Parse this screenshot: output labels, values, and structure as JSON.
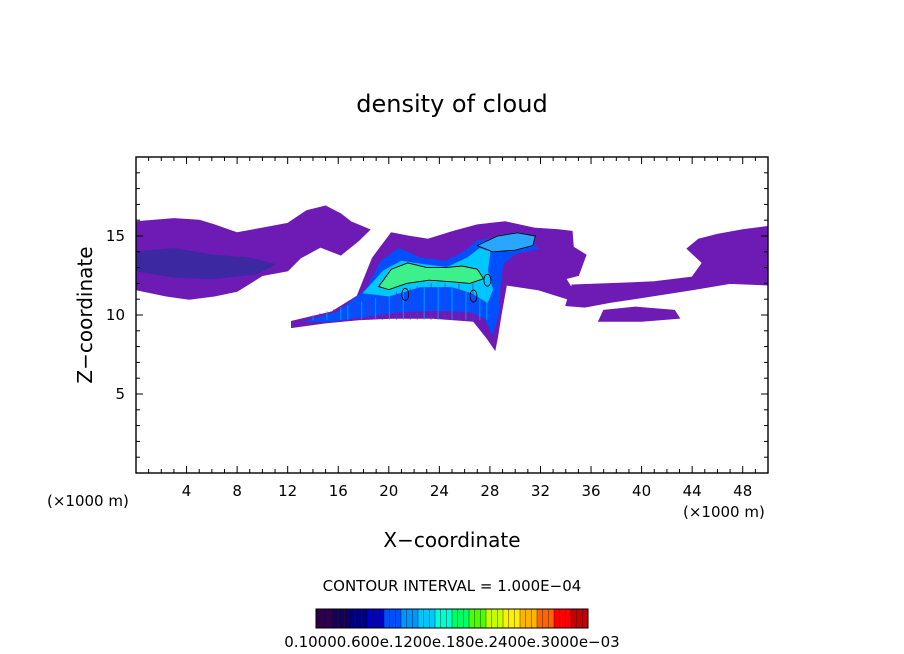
{
  "chart_data": {
    "type": "heatmap",
    "title": "density of cloud",
    "xlabel": "X−coordinate",
    "ylabel": "Z−coordinate",
    "x_unit_left": "(×1000 m)",
    "x_unit_right": "(×1000 m)",
    "xlim": [
      0,
      50
    ],
    "ylim": [
      0,
      20
    ],
    "xticks": [
      4,
      8,
      12,
      16,
      20,
      24,
      28,
      32,
      36,
      40,
      44,
      48
    ],
    "yticks": [
      5,
      10,
      15
    ],
    "contour_interval_label": "CONTOUR INTERVAL = 1.000E−04",
    "colorbar_labels": [
      "0.1000",
      "0.6000e−04",
      "0.1200e−03",
      "0.1800e−03",
      "0.2400e−03",
      "0.3000e−03"
    ],
    "colorbar_label_overlap_text": "0.10000.600e.1200e.180e.2400e.3000e−03",
    "colorbar_colors": [
      "#2a004a",
      "#14005a",
      "#000080",
      "#0000c8",
      "#0050ff",
      "#0096ff",
      "#00c8ff",
      "#00ffd2",
      "#00ff64",
      "#4bff00",
      "#c8ff00",
      "#fff000",
      "#ffb400",
      "#ff6400",
      "#ff0000",
      "#c80000"
    ],
    "regions": [
      {
        "name": "left-layer",
        "level": 0.06,
        "color": "#6e1ab4",
        "points": [
          [
            0,
            15.9
          ],
          [
            3,
            16.1
          ],
          [
            5,
            16.0
          ],
          [
            6.2,
            15.7
          ],
          [
            8,
            15.2
          ],
          [
            10,
            15.5
          ],
          [
            12,
            15.8
          ],
          [
            13.5,
            16.6
          ],
          [
            15,
            16.9
          ],
          [
            16.2,
            16.4
          ],
          [
            17,
            15.9
          ],
          [
            18.5,
            15.4
          ],
          [
            17.6,
            14.7
          ],
          [
            16.2,
            13.8
          ],
          [
            14.6,
            14.3
          ],
          [
            13,
            13.6
          ],
          [
            12,
            12.8
          ],
          [
            10,
            12.5
          ],
          [
            8,
            11.5
          ],
          [
            6.2,
            11.2
          ],
          [
            4.2,
            11.0
          ],
          [
            2.4,
            11.2
          ],
          [
            0,
            11.6
          ]
        ]
      },
      {
        "name": "left-core",
        "level": 0.12,
        "color": "#3c28a0",
        "points": [
          [
            0,
            14.0
          ],
          [
            3,
            14.2
          ],
          [
            6,
            13.8
          ],
          [
            9,
            13.6
          ],
          [
            11,
            13.2
          ],
          [
            9.5,
            12.6
          ],
          [
            6,
            12.3
          ],
          [
            3,
            12.4
          ],
          [
            0,
            12.8
          ]
        ]
      },
      {
        "name": "main-envelope",
        "level": 0.1,
        "color": "#6e1ab4",
        "points": [
          [
            12.3,
            9.6
          ],
          [
            15.5,
            10.2
          ],
          [
            17.5,
            11.2
          ],
          [
            18.7,
            13.6
          ],
          [
            20.2,
            15.2
          ],
          [
            21.5,
            15.0
          ],
          [
            23.1,
            14.8
          ],
          [
            25.1,
            15.3
          ],
          [
            27.0,
            15.7
          ],
          [
            29.2,
            15.9
          ],
          [
            31.5,
            15.5
          ],
          [
            33.4,
            15.4
          ],
          [
            34.5,
            15.3
          ],
          [
            34.6,
            14.3
          ],
          [
            35.6,
            13.8
          ],
          [
            35.0,
            12.5
          ],
          [
            34.0,
            12.3
          ],
          [
            34.7,
            11.4
          ],
          [
            34.2,
            11.0
          ],
          [
            31.8,
            11.6
          ],
          [
            29.3,
            11.9
          ],
          [
            28.9,
            10.1
          ],
          [
            28.6,
            8.6
          ],
          [
            28.4,
            7.8
          ],
          [
            27.8,
            8.5
          ],
          [
            26.7,
            9.6
          ],
          [
            23.5,
            9.8
          ],
          [
            20.3,
            9.8
          ],
          [
            17.6,
            9.7
          ],
          [
            15.0,
            9.5
          ],
          [
            12.3,
            9.2
          ]
        ]
      },
      {
        "name": "main-blue",
        "level": 0.8,
        "color": "#0050ff",
        "points": [
          [
            13.4,
            9.6
          ],
          [
            16.0,
            10.2
          ],
          [
            18.2,
            11.6
          ],
          [
            19.4,
            13.4
          ],
          [
            20.8,
            14.2
          ],
          [
            22.5,
            13.6
          ],
          [
            24.5,
            13.4
          ],
          [
            26.0,
            14.0
          ],
          [
            27.0,
            14.7
          ],
          [
            28.8,
            14.9
          ],
          [
            31.0,
            14.8
          ],
          [
            31.8,
            14.2
          ],
          [
            30.0,
            13.9
          ],
          [
            29.0,
            13.2
          ],
          [
            28.8,
            11.8
          ],
          [
            28.7,
            10.1
          ],
          [
            28.2,
            8.8
          ],
          [
            27.6,
            9.8
          ],
          [
            26.5,
            10.2
          ],
          [
            24.0,
            10.3
          ],
          [
            20.8,
            10.2
          ],
          [
            18.0,
            9.9
          ],
          [
            15.5,
            9.6
          ]
        ]
      },
      {
        "name": "main-cyan",
        "level": 1.4,
        "color": "#00c8ff",
        "points": [
          [
            18.0,
            11.4
          ],
          [
            19.6,
            12.8
          ],
          [
            21.0,
            13.4
          ],
          [
            22.6,
            13.2
          ],
          [
            24.6,
            13.0
          ],
          [
            26.2,
            13.6
          ],
          [
            27.2,
            14.2
          ],
          [
            28.0,
            14.0
          ],
          [
            27.8,
            12.8
          ],
          [
            28.2,
            11.6
          ],
          [
            27.8,
            10.8
          ],
          [
            26.6,
            11.4
          ],
          [
            25.0,
            11.8
          ],
          [
            22.5,
            11.8
          ],
          [
            20.0,
            11.2
          ]
        ]
      },
      {
        "name": "core-green",
        "level": 1.9,
        "color": "#3cf08c",
        "points": [
          [
            19.2,
            11.8
          ],
          [
            20.2,
            12.9
          ],
          [
            21.5,
            13.3
          ],
          [
            23.0,
            13.0
          ],
          [
            24.5,
            13.0
          ],
          [
            25.8,
            13.1
          ],
          [
            27.0,
            12.9
          ],
          [
            27.5,
            12.3
          ],
          [
            26.4,
            12.0
          ],
          [
            25.0,
            12.1
          ],
          [
            23.2,
            12.2
          ],
          [
            21.4,
            12.0
          ],
          [
            20.0,
            11.6
          ]
        ]
      },
      {
        "name": "top-blob",
        "level": 1.2,
        "color": "#2aa6ff",
        "points": [
          [
            27.0,
            14.4
          ],
          [
            28.6,
            15.0
          ],
          [
            30.2,
            15.2
          ],
          [
            31.6,
            15.0
          ],
          [
            31.4,
            14.4
          ],
          [
            30.0,
            14.1
          ],
          [
            28.2,
            14.0
          ]
        ]
      },
      {
        "name": "right-layer",
        "level": 0.06,
        "color": "#6e1ab4",
        "points": [
          [
            34.5,
            11.9
          ],
          [
            38.0,
            12.0
          ],
          [
            41.0,
            12.1
          ],
          [
            44.0,
            12.4
          ],
          [
            44.8,
            13.3
          ],
          [
            43.6,
            14.2
          ],
          [
            44.5,
            14.8
          ],
          [
            46.0,
            15.1
          ],
          [
            48.0,
            15.4
          ],
          [
            50.0,
            15.6
          ],
          [
            50,
            11.9
          ],
          [
            47.0,
            12.0
          ],
          [
            44.0,
            11.6
          ],
          [
            40.0,
            11.1
          ],
          [
            37.5,
            10.8
          ],
          [
            35.5,
            10.5
          ],
          [
            34.0,
            10.6
          ]
        ]
      },
      {
        "name": "right-small",
        "level": 0.05,
        "color": "#6e1ab4",
        "points": [
          [
            36.6,
            9.6
          ],
          [
            37.0,
            10.3
          ],
          [
            39.5,
            10.5
          ],
          [
            42.6,
            10.3
          ],
          [
            43.0,
            9.8
          ],
          [
            40.0,
            9.6
          ]
        ]
      }
    ]
  }
}
